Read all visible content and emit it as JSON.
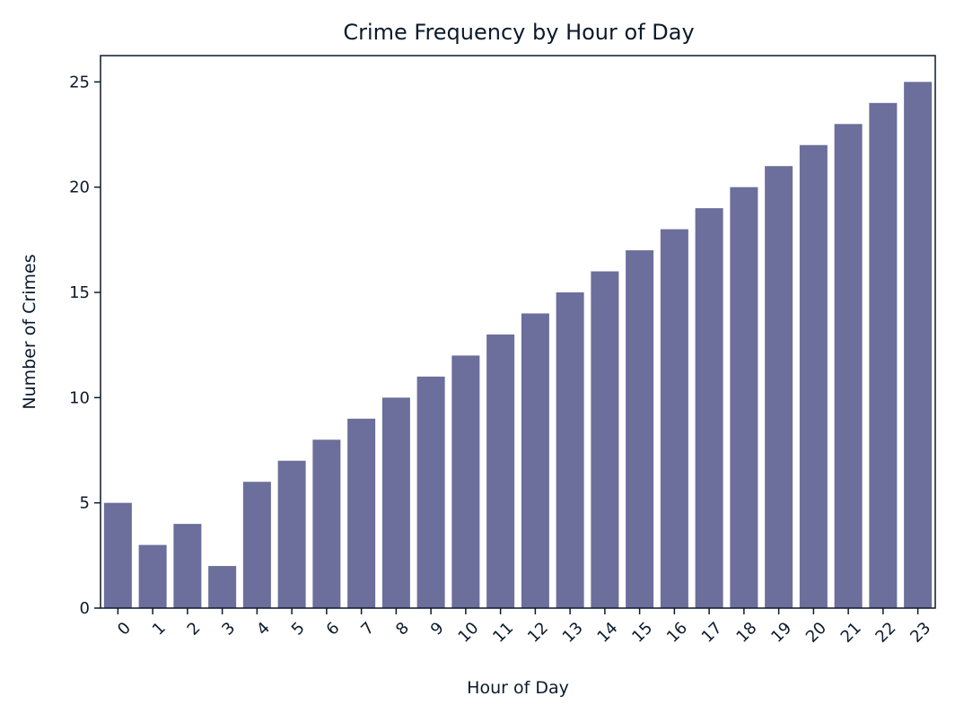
{
  "chart_data": {
    "type": "bar",
    "title": "Crime Frequency by Hour of Day",
    "xlabel": "Hour of Day",
    "ylabel": "Number of Crimes",
    "categories": [
      "0",
      "1",
      "2",
      "3",
      "4",
      "5",
      "6",
      "7",
      "8",
      "9",
      "10",
      "11",
      "12",
      "13",
      "14",
      "15",
      "16",
      "17",
      "18",
      "19",
      "20",
      "21",
      "22",
      "23"
    ],
    "values": [
      5,
      3,
      4,
      2,
      6,
      7,
      8,
      9,
      10,
      11,
      12,
      13,
      14,
      15,
      16,
      17,
      18,
      19,
      20,
      21,
      22,
      23,
      24,
      25
    ],
    "ylim": [
      0,
      26.25
    ],
    "yticks": [
      0,
      5,
      10,
      15,
      20,
      25
    ],
    "x_tick_rotation": "45deg",
    "grid": false,
    "legend": "none",
    "colors": {
      "bar": "#6c6e9b",
      "axis": "#0b1a2b",
      "text": "#0b1a2b"
    }
  }
}
